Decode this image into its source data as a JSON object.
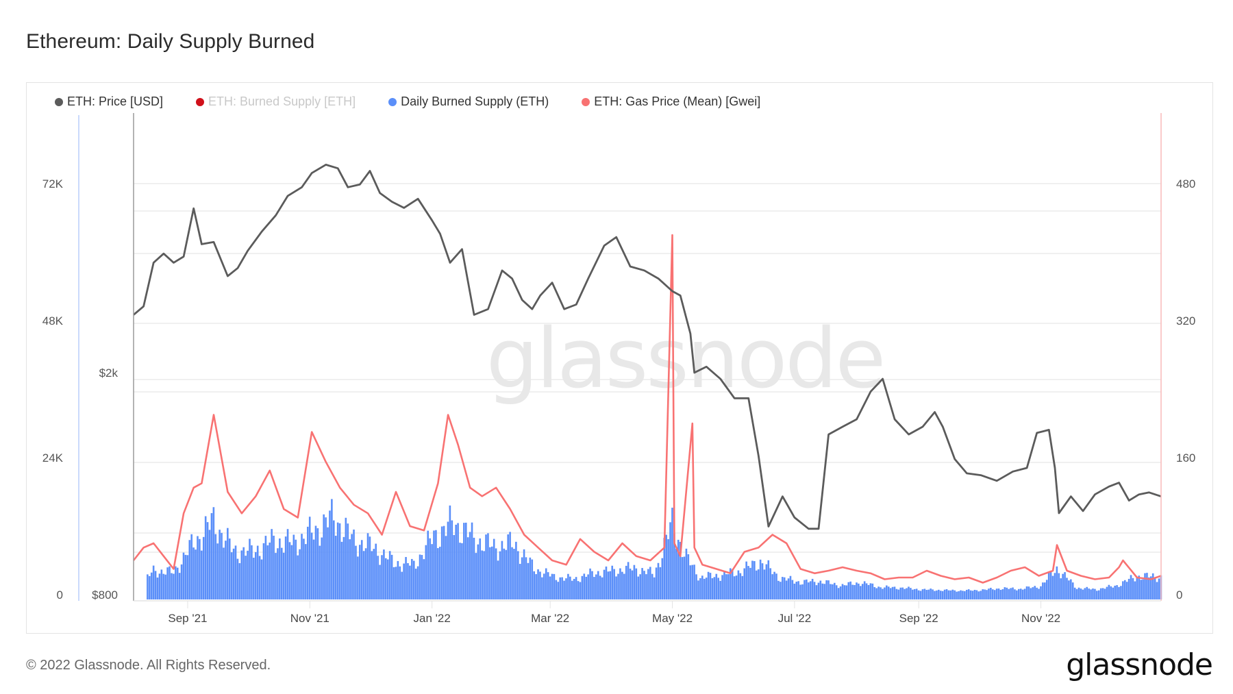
{
  "title": "Ethereum: Daily Supply Burned",
  "legend": [
    {
      "label": "ETH: Price [USD]",
      "color": "#5b5b5b",
      "enabled": true
    },
    {
      "label": "ETH: Burned Supply [ETH]",
      "color": "#d0101a",
      "enabled": false
    },
    {
      "label": "Daily Burned Supply (ETH)",
      "color": "#5b8ff9",
      "enabled": true
    },
    {
      "label": "ETH: Gas Price (Mean) [Gwei]",
      "color": "#f87272",
      "enabled": true
    }
  ],
  "watermark": "glassnode",
  "footer": {
    "copyright": "© 2022 Glassnode. All Rights Reserved.",
    "logo": "glassnode"
  },
  "chart_data": {
    "type": "line",
    "title": "Ethereum: Daily Supply Burned",
    "xlabel": "",
    "x_ticks": [
      "Sep '21",
      "Nov '21",
      "Jan '22",
      "Mar '22",
      "May '22",
      "Jul '22",
      "Sep '22",
      "Nov '22"
    ],
    "x_range": [
      "2021-08-05",
      "2022-12-31"
    ],
    "axes": {
      "left_burn": {
        "ticks": [
          "0",
          "24K",
          "48K",
          "72K"
        ],
        "range": [
          0,
          72000
        ],
        "label": "Daily Burned Supply (ETH)"
      },
      "left_price": {
        "ticks": [
          "$800",
          "$2k"
        ],
        "scale": "log",
        "label": "ETH: Price [USD]"
      },
      "right_gas": {
        "ticks": [
          "0",
          "160",
          "320",
          "480"
        ],
        "range": [
          0,
          480
        ],
        "label": "ETH: Gas Price (Mean) [Gwei]"
      }
    },
    "grid": true,
    "legend_position": "top-left",
    "series": [
      {
        "name": "ETH: Price [USD]",
        "axis": "left_price",
        "color": "#5b5b5b",
        "x": [
          "2021-08-05",
          "2021-08-10",
          "2021-08-15",
          "2021-08-20",
          "2021-08-25",
          "2021-08-30",
          "2021-09-04",
          "2021-09-08",
          "2021-09-14",
          "2021-09-21",
          "2021-09-26",
          "2021-10-01",
          "2021-10-08",
          "2021-10-15",
          "2021-10-21",
          "2021-10-28",
          "2021-11-02",
          "2021-11-09",
          "2021-11-15",
          "2021-11-20",
          "2021-11-26",
          "2021-12-01",
          "2021-12-06",
          "2021-12-12",
          "2021-12-18",
          "2021-12-25",
          "2022-01-01",
          "2022-01-05",
          "2022-01-10",
          "2022-01-16",
          "2022-01-22",
          "2022-01-29",
          "2022-02-05",
          "2022-02-10",
          "2022-02-15",
          "2022-02-20",
          "2022-02-24",
          "2022-03-02",
          "2022-03-08",
          "2022-03-14",
          "2022-03-20",
          "2022-03-28",
          "2022-04-03",
          "2022-04-10",
          "2022-04-17",
          "2022-04-24",
          "2022-05-01",
          "2022-05-05",
          "2022-05-10",
          "2022-05-12",
          "2022-05-18",
          "2022-05-25",
          "2022-06-01",
          "2022-06-08",
          "2022-06-13",
          "2022-06-18",
          "2022-06-25",
          "2022-07-01",
          "2022-07-08",
          "2022-07-13",
          "2022-07-18",
          "2022-07-25",
          "2022-08-01",
          "2022-08-08",
          "2022-08-14",
          "2022-08-20",
          "2022-08-27",
          "2022-09-03",
          "2022-09-09",
          "2022-09-13",
          "2022-09-19",
          "2022-09-25",
          "2022-10-02",
          "2022-10-10",
          "2022-10-18",
          "2022-10-25",
          "2022-10-30",
          "2022-11-05",
          "2022-11-08",
          "2022-11-10",
          "2022-11-16",
          "2022-11-22",
          "2022-11-28",
          "2022-12-05",
          "2022-12-10",
          "2022-12-15",
          "2022-12-20",
          "2022-12-25",
          "2022-12-31"
        ],
        "values": [
          2540,
          2630,
          3150,
          3270,
          3150,
          3230,
          3940,
          3400,
          3430,
          2980,
          3080,
          3310,
          3580,
          3830,
          4150,
          4300,
          4560,
          4720,
          4650,
          4300,
          4350,
          4600,
          4200,
          4050,
          3950,
          4100,
          3750,
          3550,
          3150,
          3330,
          2540,
          2600,
          3050,
          2950,
          2700,
          2600,
          2750,
          2900,
          2600,
          2650,
          2950,
          3380,
          3500,
          3100,
          3050,
          2950,
          2800,
          2750,
          2350,
          2000,
          2050,
          1950,
          1800,
          1800,
          1420,
          1060,
          1200,
          1100,
          1050,
          1050,
          1550,
          1600,
          1650,
          1850,
          1950,
          1650,
          1550,
          1600,
          1700,
          1600,
          1400,
          1320,
          1310,
          1280,
          1330,
          1350,
          1560,
          1580,
          1350,
          1120,
          1200,
          1130,
          1210,
          1250,
          1270,
          1180,
          1210,
          1220,
          1200
        ]
      },
      {
        "name": "Daily Burned Supply (ETH)",
        "axis": "left_burn",
        "type": "bar",
        "color": "#5b8ff9",
        "x": [
          "2021-08-05",
          "2021-08-15",
          "2021-08-25",
          "2021-09-04",
          "2021-09-14",
          "2021-09-24",
          "2021-10-04",
          "2021-10-14",
          "2021-10-24",
          "2021-11-03",
          "2021-11-13",
          "2021-11-23",
          "2021-12-03",
          "2021-12-13",
          "2021-12-23",
          "2022-01-02",
          "2022-01-12",
          "2022-01-22",
          "2022-02-01",
          "2022-02-11",
          "2022-02-21",
          "2022-03-03",
          "2022-03-13",
          "2022-03-23",
          "2022-04-02",
          "2022-04-12",
          "2022-04-22",
          "2022-05-01",
          "2022-05-08",
          "2022-05-15",
          "2022-05-25",
          "2022-06-04",
          "2022-06-14",
          "2022-06-24",
          "2022-07-04",
          "2022-07-14",
          "2022-07-24",
          "2022-08-03",
          "2022-08-13",
          "2022-08-23",
          "2022-09-02",
          "2022-09-12",
          "2022-09-22",
          "2022-10-02",
          "2022-10-12",
          "2022-10-22",
          "2022-11-01",
          "2022-11-09",
          "2022-11-19",
          "2022-11-29",
          "2022-12-09",
          "2022-12-19",
          "2022-12-31"
        ],
        "values": [
          0,
          4200,
          3900,
          9000,
          12800,
          7600,
          7600,
          9400,
          9000,
          11000,
          13500,
          9500,
          8200,
          5600,
          5200,
          10200,
          12500,
          9800,
          8300,
          8900,
          4600,
          3100,
          2700,
          3800,
          4200,
          4600,
          3600,
          12300,
          6500,
          3000,
          3400,
          4100,
          5800,
          2900,
          2200,
          2300,
          1600,
          2100,
          1300,
          1200,
          900,
          800,
          700,
          800,
          1100,
          1000,
          1500,
          4600,
          1200,
          900,
          1600,
          3200,
          3100
        ]
      },
      {
        "name": "ETH: Gas Price (Mean) [Gwei]",
        "axis": "right_gas",
        "color": "#f87272",
        "x": [
          "2021-08-05",
          "2021-08-10",
          "2021-08-15",
          "2021-08-20",
          "2021-08-25",
          "2021-08-30",
          "2021-09-04",
          "2021-09-08",
          "2021-09-14",
          "2021-09-21",
          "2021-09-28",
          "2021-10-05",
          "2021-10-12",
          "2021-10-19",
          "2021-10-26",
          "2021-11-02",
          "2021-11-09",
          "2021-11-16",
          "2021-11-23",
          "2021-11-30",
          "2021-12-07",
          "2021-12-14",
          "2021-12-21",
          "2021-12-28",
          "2022-01-04",
          "2022-01-09",
          "2022-01-14",
          "2022-01-20",
          "2022-01-26",
          "2022-02-02",
          "2022-02-09",
          "2022-02-16",
          "2022-02-23",
          "2022-03-02",
          "2022-03-09",
          "2022-03-16",
          "2022-03-23",
          "2022-03-30",
          "2022-04-06",
          "2022-04-13",
          "2022-04-20",
          "2022-04-27",
          "2022-05-01",
          "2022-05-02",
          "2022-05-05",
          "2022-05-11",
          "2022-05-12",
          "2022-05-16",
          "2022-05-23",
          "2022-05-30",
          "2022-06-06",
          "2022-06-13",
          "2022-06-20",
          "2022-06-27",
          "2022-07-04",
          "2022-07-11",
          "2022-07-18",
          "2022-07-25",
          "2022-08-01",
          "2022-08-08",
          "2022-08-15",
          "2022-08-22",
          "2022-08-29",
          "2022-09-05",
          "2022-09-12",
          "2022-09-19",
          "2022-09-26",
          "2022-10-03",
          "2022-10-10",
          "2022-10-17",
          "2022-10-24",
          "2022-10-31",
          "2022-11-07",
          "2022-11-09",
          "2022-11-14",
          "2022-11-21",
          "2022-11-28",
          "2022-12-05",
          "2022-12-10",
          "2022-12-12",
          "2022-12-19",
          "2022-12-26",
          "2022-12-31"
        ],
        "values": [
          40,
          55,
          60,
          45,
          30,
          95,
          125,
          130,
          210,
          120,
          95,
          115,
          145,
          100,
          90,
          190,
          155,
          125,
          105,
          95,
          70,
          120,
          80,
          75,
          130,
          210,
          175,
          125,
          115,
          125,
          100,
          70,
          55,
          40,
          35,
          65,
          50,
          40,
          60,
          45,
          40,
          55,
          420,
          60,
          45,
          200,
          55,
          35,
          30,
          25,
          50,
          55,
          70,
          60,
          30,
          25,
          28,
          32,
          28,
          25,
          18,
          20,
          20,
          28,
          22,
          18,
          20,
          14,
          20,
          28,
          32,
          22,
          28,
          58,
          28,
          22,
          18,
          20,
          32,
          40,
          20,
          18,
          22
        ]
      }
    ]
  }
}
